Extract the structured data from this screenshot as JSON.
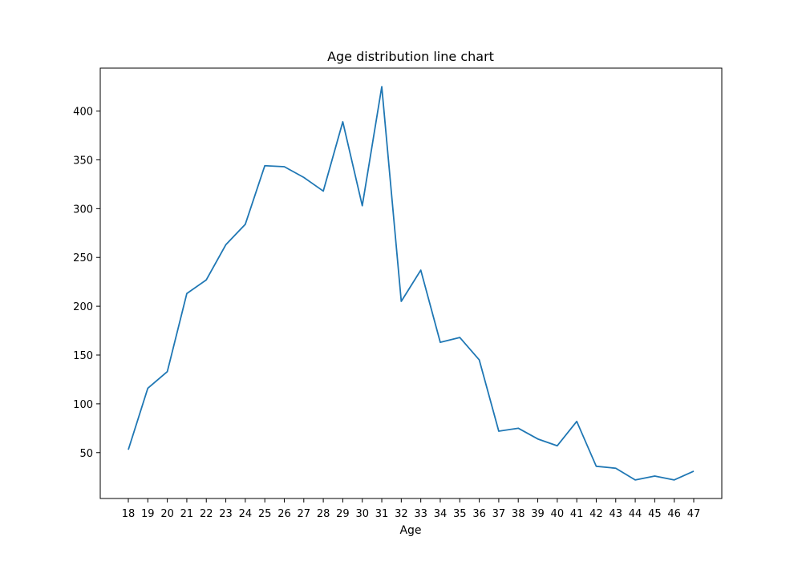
{
  "chart_data": {
    "type": "line",
    "title": "Age distribution line chart",
    "xlabel": "Age",
    "ylabel": "",
    "categories": [
      "18",
      "19",
      "20",
      "21",
      "22",
      "23",
      "24",
      "25",
      "26",
      "27",
      "28",
      "29",
      "30",
      "31",
      "32",
      "33",
      "34",
      "35",
      "36",
      "37",
      "38",
      "39",
      "40",
      "41",
      "42",
      "43",
      "44",
      "45",
      "46",
      "47"
    ],
    "series": [
      {
        "name": "",
        "color": "#1f77b4",
        "values": [
          53,
          116,
          133,
          213,
          227,
          263,
          284,
          344,
          343,
          332,
          318,
          389,
          303,
          425,
          205,
          237,
          163,
          168,
          145,
          72,
          75,
          64,
          57,
          82,
          36,
          34,
          22,
          26,
          22,
          31
        ]
      }
    ],
    "ylim": [
      3,
      444
    ],
    "yticks": [
      50,
      100,
      150,
      200,
      250,
      300,
      350,
      400
    ],
    "grid": false,
    "legend": "none"
  }
}
